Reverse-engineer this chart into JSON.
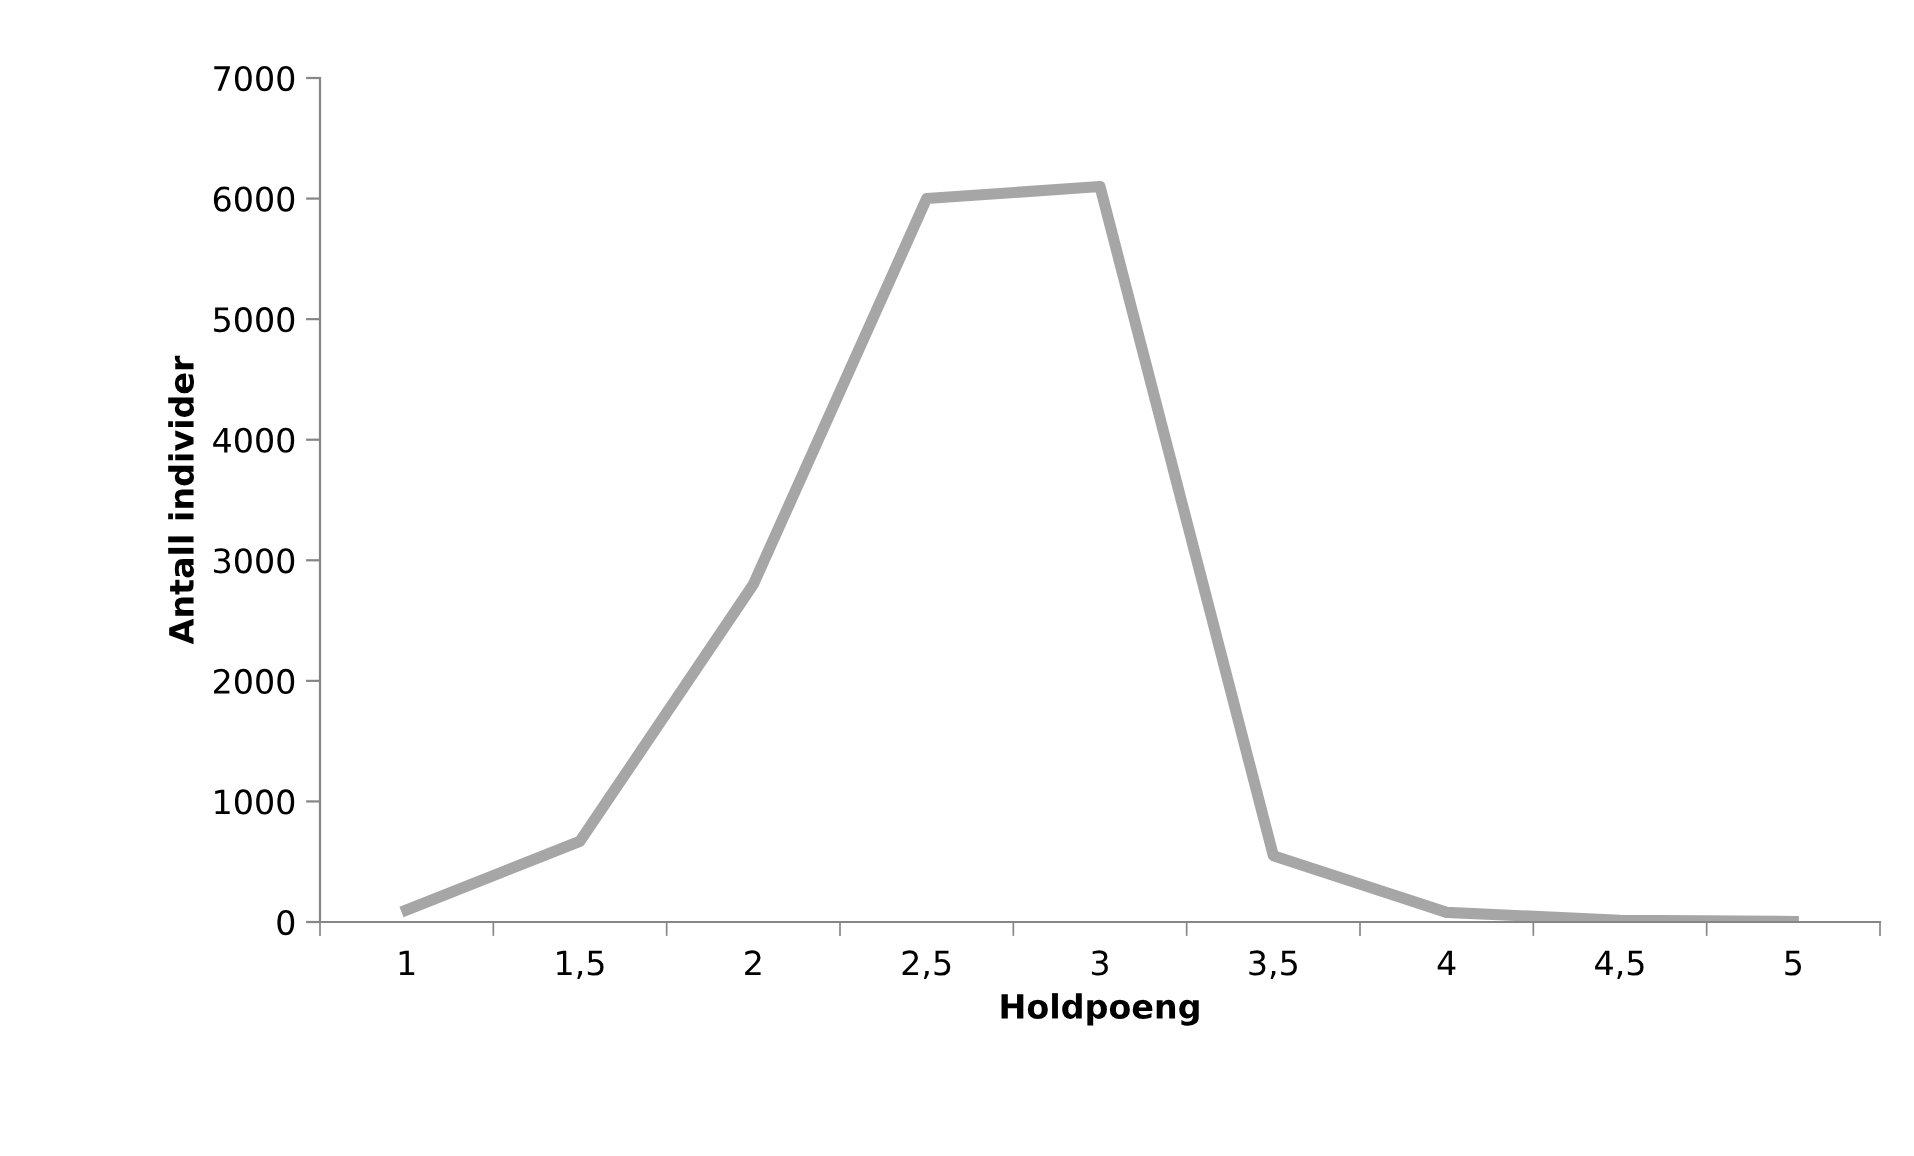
{
  "chart_data": {
    "type": "line",
    "xlabel": "Holdpoeng",
    "ylabel": "Antall individer",
    "categories": [
      "1",
      "1,5",
      "2",
      "2,5",
      "3",
      "3,5",
      "4",
      "4,5",
      "5"
    ],
    "series": [
      {
        "color": "#a6a6a6",
        "values": [
          100,
          670,
          2800,
          6000,
          6100,
          550,
          80,
          15,
          5
        ]
      }
    ],
    "ylim": [
      0,
      7000
    ],
    "yticks": [
      0,
      1000,
      2000,
      3000,
      4000,
      5000,
      6000,
      7000
    ],
    "grid": false,
    "legend": false,
    "marker": "none",
    "line_style": "solid"
  }
}
